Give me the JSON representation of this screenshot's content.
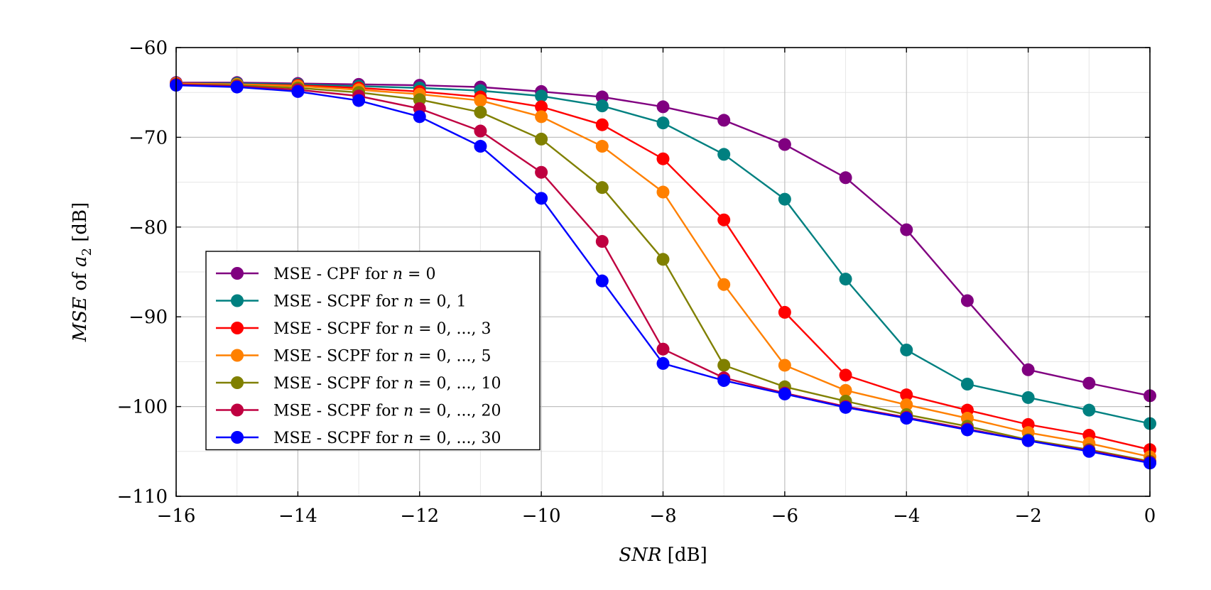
{
  "chart_data": {
    "type": "line",
    "xlabel_var": "SNR",
    "xlabel_unit": " [dB]",
    "ylabel_var": "MSE",
    "ylabel_mid": " of ",
    "ylabel_sym": "a",
    "ylabel_sub": "2",
    "ylabel_unit": " [dB]",
    "xlim": [
      -16,
      0
    ],
    "ylim": [
      -110,
      -60
    ],
    "x_ticks": [
      -16,
      -14,
      -12,
      -10,
      -8,
      -6,
      -4,
      -2,
      0
    ],
    "x_tick_labels": [
      "−16",
      "−14",
      "−12",
      "−10",
      "−8",
      "−6",
      "−4",
      "−2",
      "0"
    ],
    "y_ticks": [
      -110,
      -100,
      -90,
      -80,
      -70,
      -60
    ],
    "y_tick_labels": [
      "−110",
      "−100",
      "−90",
      "−80",
      "−70",
      "−60"
    ],
    "grid": true,
    "legend_position": "bottom-left",
    "x": [
      -16,
      -15,
      -14,
      -13,
      -12,
      -11,
      -10,
      -9,
      -8,
      -7,
      -6,
      -5,
      -4,
      -3,
      -2,
      -1,
      0
    ],
    "series": [
      {
        "name_prefix": "MSE - CPF for ",
        "name_var": "n",
        "name_eq": " = 0",
        "color": "#800080",
        "values": [
          -63.9,
          -63.9,
          -64.0,
          -64.1,
          -64.2,
          -64.4,
          -64.9,
          -65.5,
          -66.6,
          -68.1,
          -70.8,
          -74.5,
          -80.3,
          -88.2,
          -95.9,
          -97.4,
          -98.8
        ]
      },
      {
        "name_prefix": "MSE - SCPF for ",
        "name_var": "n",
        "name_eq": " = 0, 1",
        "color": "#008080",
        "values": [
          -64.0,
          -64.0,
          -64.1,
          -64.3,
          -64.5,
          -64.8,
          -65.4,
          -66.5,
          -68.4,
          -71.9,
          -76.9,
          -85.8,
          -93.7,
          -97.5,
          -99.0,
          -100.4,
          -101.9
        ]
      },
      {
        "name_prefix": "MSE - SCPF for ",
        "name_var": "n",
        "name_eq": " = 0, ..., 3",
        "color": "#ff0000",
        "values": [
          -64.0,
          -64.1,
          -64.2,
          -64.5,
          -64.9,
          -65.5,
          -66.6,
          -68.6,
          -72.4,
          -79.2,
          -89.5,
          -96.5,
          -98.7,
          -100.4,
          -102.0,
          -103.2,
          -104.8
        ]
      },
      {
        "name_prefix": "MSE - SCPF for ",
        "name_var": "n",
        "name_eq": " = 0, ..., 5",
        "color": "#ff8000",
        "values": [
          -64.0,
          -64.1,
          -64.3,
          -64.7,
          -65.2,
          -65.9,
          -67.7,
          -71.0,
          -76.1,
          -86.4,
          -95.4,
          -98.2,
          -99.8,
          -101.3,
          -102.9,
          -104.1,
          -105.6
        ]
      },
      {
        "name_prefix": "MSE - SCPF for ",
        "name_var": "n",
        "name_eq": " = 0, ..., 10",
        "color": "#808000",
        "values": [
          -64.1,
          -64.2,
          -64.5,
          -65.0,
          -65.8,
          -67.2,
          -70.2,
          -75.6,
          -83.6,
          -95.4,
          -97.8,
          -99.4,
          -100.9,
          -102.2,
          -103.7,
          -104.8,
          -106.1
        ]
      },
      {
        "name_prefix": "MSE - SCPF for ",
        "name_var": "n",
        "name_eq": " = 0, ..., 20",
        "color": "#bf0040",
        "values": [
          -64.1,
          -64.3,
          -64.7,
          -65.4,
          -66.8,
          -69.3,
          -73.9,
          -81.6,
          -93.6,
          -96.8,
          -98.5,
          -100.0,
          -101.2,
          -102.5,
          -103.8,
          -104.9,
          -106.2
        ]
      },
      {
        "name_prefix": "MSE - SCPF for ",
        "name_var": "n",
        "name_eq": " = 0, ..., 30",
        "color": "#0000ff",
        "values": [
          -64.2,
          -64.4,
          -64.9,
          -65.9,
          -67.7,
          -71.0,
          -76.8,
          -86.0,
          -95.2,
          -97.1,
          -98.6,
          -100.1,
          -101.3,
          -102.6,
          -103.8,
          -105.0,
          -106.3
        ]
      }
    ]
  }
}
